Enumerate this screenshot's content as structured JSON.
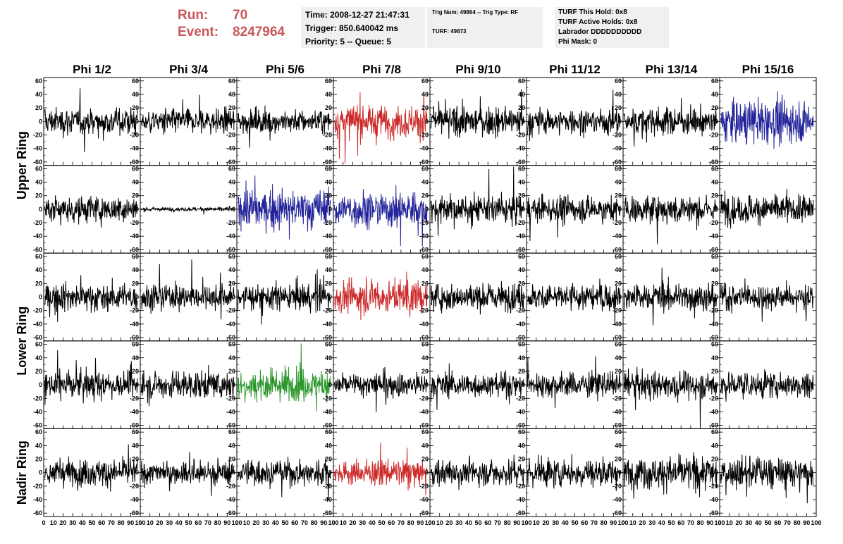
{
  "header": {
    "run_label": "Run:",
    "run_value": "70",
    "event_label": "Event:",
    "event_value": "8247964",
    "time": "Time: 2008-12-27 21:47:31",
    "trigger": "Trigger: 850.640042 ms",
    "priority": "Priority: 5 -- Queue: 5",
    "trig_num": "Trig Num: 49864 -- Trig Type: RF",
    "turf": "TURF: 49873",
    "turf_hold": "TURF This Hold: 0x8",
    "turf_active": "TURF Active Holds: 0x8",
    "labrador": "Labrador DDDDDDDDDD",
    "phi_mask": "Phi Mask: 0"
  },
  "colors": {
    "black": "#000000",
    "red": "#cc2a2a",
    "blue": "#23239a",
    "green": "#2a962a"
  },
  "chart_data": {
    "type": "line",
    "columns": [
      "Phi 1/2",
      "Phi 3/4",
      "Phi 5/6",
      "Phi 7/8",
      "Phi 9/10",
      "Phi 11/12",
      "Phi 13/14",
      "Phi 15/16"
    ],
    "ring_labels": [
      {
        "label": "Upper Ring",
        "rows": [
          0,
          1
        ]
      },
      {
        "label": "Lower Ring",
        "rows": [
          2,
          3
        ]
      },
      {
        "label": "Nadir Ring",
        "rows": [
          4
        ]
      }
    ],
    "ylim": [
      -65,
      65
    ],
    "yticks": [
      -60,
      -40,
      -20,
      0,
      20,
      40,
      60
    ],
    "xlim": [
      0,
      100
    ],
    "xtick_labels": [
      "0",
      "10",
      "20",
      "30",
      "40",
      "50",
      "60",
      "70",
      "80",
      "90",
      "100"
    ],
    "trace_colors": [
      [
        "black",
        "black",
        "black",
        "red",
        "black",
        "black",
        "black",
        "blue"
      ],
      [
        "black",
        "black",
        "blue",
        "blue",
        "black",
        "black",
        "black",
        "black"
      ],
      [
        "black",
        "black",
        "black",
        "red",
        "black",
        "black",
        "black",
        "black"
      ],
      [
        "black",
        "black",
        "green",
        "black",
        "black",
        "black",
        "black",
        "black"
      ],
      [
        "black",
        "black",
        "black",
        "red",
        "black",
        "black",
        "black",
        "black"
      ]
    ],
    "trace_amplitude": [
      [
        14,
        13,
        12,
        17,
        15,
        13,
        14,
        22
      ],
      [
        14,
        2,
        20,
        19,
        14,
        13,
        14,
        15
      ],
      [
        14,
        13,
        14,
        17,
        14,
        14,
        14,
        13
      ],
      [
        14,
        14,
        16,
        13,
        12,
        13,
        14,
        14
      ],
      [
        14,
        12,
        13,
        13,
        14,
        15,
        17,
        16
      ]
    ]
  }
}
